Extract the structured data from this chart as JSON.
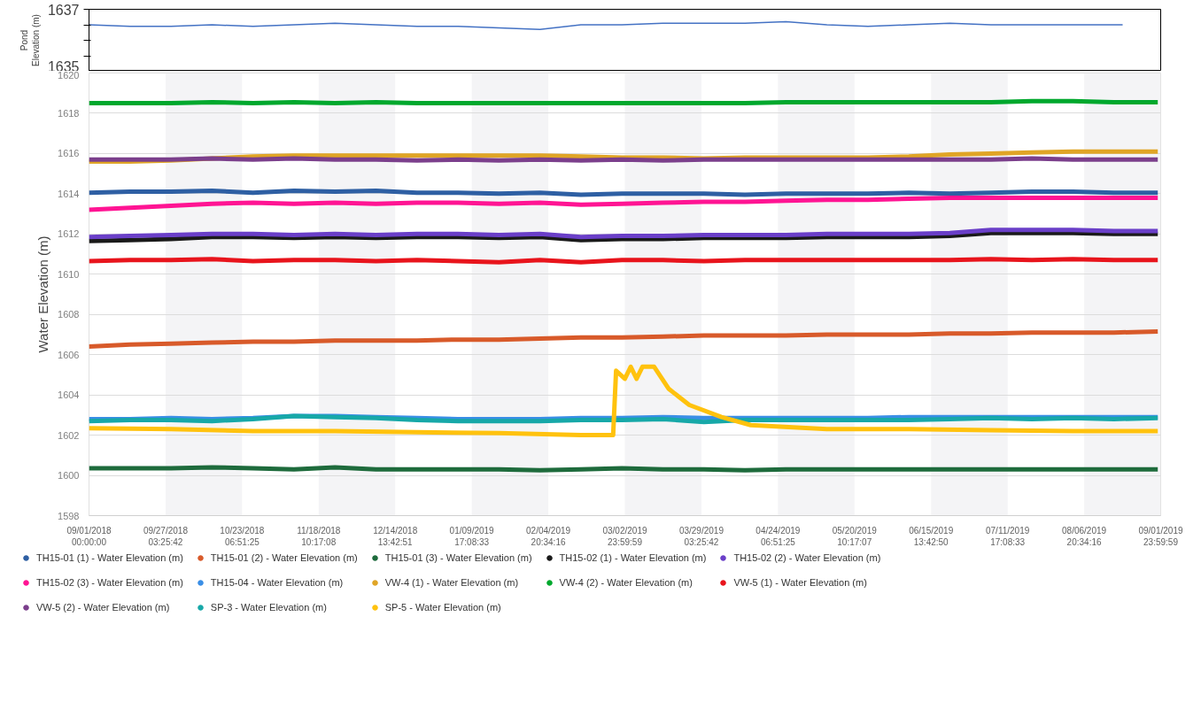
{
  "chart_data": [
    {
      "type": "line",
      "ylabel": "Pond\nElevation (m)",
      "xlim": [
        "2018-09-01T00:00",
        "2019-09-01T23:59"
      ],
      "ylim": [
        1635,
        1637
      ],
      "yticks": [
        1635,
        {
          "value": 1635.5,
          "label": null
        },
        {
          "value": 1636,
          "label": null
        },
        {
          "value": 1636.5,
          "label": null
        },
        1637
      ],
      "tick_labels": "y",
      "grid": false,
      "x": [
        "2018-09-01",
        "2018-09-15",
        "2018-09-29",
        "2018-10-13",
        "2018-10-27",
        "2018-11-10",
        "2018-11-24",
        "2018-12-08",
        "2018-12-22",
        "2019-01-05",
        "2019-01-19",
        "2019-02-02",
        "2019-02-16",
        "2019-03-02",
        "2019-03-16",
        "2019-03-30",
        "2019-04-13",
        "2019-04-27",
        "2019-05-11",
        "2019-05-25",
        "2019-06-08",
        "2019-06-22",
        "2019-07-06",
        "2019-07-20",
        "2019-08-03",
        "2019-08-20"
      ],
      "series": [
        {
          "color": "#4472c4",
          "values": [
            1636.5,
            1636.45,
            1636.45,
            1636.5,
            1636.45,
            1636.5,
            1636.55,
            1636.5,
            1636.45,
            1636.45,
            1636.4,
            1636.35,
            1636.5,
            1636.5,
            1636.55,
            1636.55,
            1636.55,
            1636.6,
            1636.5,
            1636.45,
            1636.5,
            1636.55,
            1636.5,
            1636.5,
            1636.5,
            1636.5
          ]
        }
      ]
    },
    {
      "type": "line",
      "ylabel": "Water Elevation (m)",
      "xlim": [
        "2018-09-01T00:00",
        "2019-09-01T23:59"
      ],
      "xticks": [
        {
          "value": "2018-09-01T00:00",
          "label": "09/01/2018\n00:00:00"
        },
        {
          "value": "2018-09-27T03:25",
          "label": "09/27/2018\n03:25:42"
        },
        {
          "value": "2018-10-23T06:51",
          "label": "10/23/2018\n06:51:25"
        },
        {
          "value": "2018-11-18T10:17",
          "label": "11/18/2018\n10:17:08"
        },
        {
          "value": "2018-12-14T13:42",
          "label": "12/14/2018\n13:42:51"
        },
        {
          "value": "2019-01-09T17:08",
          "label": "01/09/2019\n17:08:33"
        },
        {
          "value": "2019-02-04T20:34",
          "label": "02/04/2019\n20:34:16"
        },
        {
          "value": "2019-03-02T23:59",
          "label": "03/02/2019\n23:59:59"
        },
        {
          "value": "2019-03-29T03:25",
          "label": "03/29/2019\n03:25:42"
        },
        {
          "value": "2019-04-24T06:51",
          "label": "04/24/2019\n06:51:25"
        },
        {
          "value": "2019-05-20T10:17",
          "label": "05/20/2019\n10:17:07"
        },
        {
          "value": "2019-06-15T13:42",
          "label": "06/15/2019\n13:42:50"
        },
        {
          "value": "2019-07-11T17:08",
          "label": "07/11/2019\n17:08:33"
        },
        {
          "value": "2019-08-06T20:34",
          "label": "08/06/2019\n20:34:16"
        },
        {
          "value": "2019-09-01T23:59",
          "label": "09/01/2019\n23:59:59"
        }
      ],
      "ylim": [
        1598,
        1620
      ],
      "yticks": [
        1598,
        1600,
        1602,
        1604,
        1606,
        1608,
        1610,
        1612,
        1614,
        1616,
        1618,
        1620
      ],
      "grid": true,
      "legend": "bottom",
      "x": [
        "2018-09-01",
        "2018-09-15",
        "2018-09-29",
        "2018-10-13",
        "2018-10-27",
        "2018-11-10",
        "2018-11-24",
        "2018-12-08",
        "2018-12-22",
        "2019-01-05",
        "2019-01-19",
        "2019-02-02",
        "2019-02-16",
        "2019-03-02",
        "2019-03-16",
        "2019-03-30",
        "2019-04-13",
        "2019-04-27",
        "2019-05-11",
        "2019-05-25",
        "2019-06-08",
        "2019-06-22",
        "2019-07-06",
        "2019-07-20",
        "2019-08-03",
        "2019-08-17",
        "2019-09-01"
      ],
      "series": [
        {
          "name": "TH15-01 (1) - Water Elevation (m)",
          "color": "#2e5fa3",
          "values": [
            1614.05,
            1614.1,
            1614.1,
            1614.15,
            1614.05,
            1614.15,
            1614.1,
            1614.15,
            1614.05,
            1614.05,
            1614.0,
            1614.05,
            1613.95,
            1614.0,
            1614.0,
            1614.0,
            1613.95,
            1614.0,
            1614.0,
            1614.0,
            1614.05,
            1614.0,
            1614.05,
            1614.1,
            1614.1,
            1614.05,
            1614.05
          ]
        },
        {
          "name": "TH15-01 (2) - Water Elevation (m)",
          "color": "#d85a2a",
          "values": [
            1606.4,
            1606.5,
            1606.55,
            1606.6,
            1606.65,
            1606.65,
            1606.7,
            1606.7,
            1606.7,
            1606.75,
            1606.75,
            1606.8,
            1606.85,
            1606.85,
            1606.9,
            1606.95,
            1606.95,
            1606.95,
            1607.0,
            1607.0,
            1607.0,
            1607.05,
            1607.05,
            1607.1,
            1607.1,
            1607.1,
            1607.15
          ]
        },
        {
          "name": "TH15-01 (3) - Water Elevation (m)",
          "color": "#1e6b3c",
          "values": [
            1600.35,
            1600.35,
            1600.35,
            1600.4,
            1600.35,
            1600.3,
            1600.4,
            1600.3,
            1600.3,
            1600.3,
            1600.3,
            1600.25,
            1600.3,
            1600.35,
            1600.3,
            1600.3,
            1600.25,
            1600.3,
            1600.3,
            1600.3,
            1600.3,
            1600.3,
            1600.3,
            1600.3,
            1600.3,
            1600.3,
            1600.3
          ]
        },
        {
          "name": "TH15-02 (1) - Water Elevation (m)",
          "color": "#1a1a1a",
          "values": [
            1611.65,
            1611.7,
            1611.75,
            1611.85,
            1611.85,
            1611.8,
            1611.85,
            1611.8,
            1611.85,
            1611.85,
            1611.8,
            1611.85,
            1611.7,
            1611.75,
            1611.75,
            1611.8,
            1611.8,
            1611.8,
            1611.85,
            1611.85,
            1611.85,
            1611.9,
            1612.05,
            1612.05,
            1612.05,
            1612.0,
            1612.0
          ]
        },
        {
          "name": "TH15-02 (2) - Water Elevation (m)",
          "color": "#6a3fc8",
          "values": [
            1611.85,
            1611.9,
            1611.95,
            1612.0,
            1612.0,
            1611.95,
            1612.0,
            1611.95,
            1612.0,
            1612.0,
            1611.95,
            1612.0,
            1611.85,
            1611.9,
            1611.9,
            1611.95,
            1611.95,
            1611.95,
            1612.0,
            1612.0,
            1612.0,
            1612.05,
            1612.2,
            1612.2,
            1612.2,
            1612.15,
            1612.15
          ]
        },
        {
          "name": "TH15-02 (3) - Water Elevation (m)",
          "color": "#ff1493",
          "values": [
            1613.2,
            1613.3,
            1613.4,
            1613.5,
            1613.55,
            1613.5,
            1613.55,
            1613.5,
            1613.55,
            1613.55,
            1613.5,
            1613.55,
            1613.45,
            1613.5,
            1613.55,
            1613.6,
            1613.6,
            1613.65,
            1613.7,
            1613.7,
            1613.75,
            1613.8,
            1613.8,
            1613.8,
            1613.8,
            1613.8,
            1613.8
          ]
        },
        {
          "name": "TH15-04 - Water Elevation (m)",
          "color": "#3a8ee6",
          "values": [
            1602.8,
            1602.8,
            1602.85,
            1602.8,
            1602.85,
            1602.95,
            1602.95,
            1602.9,
            1602.85,
            1602.8,
            1602.8,
            1602.8,
            1602.85,
            1602.85,
            1602.9,
            1602.85,
            1602.85,
            1602.85,
            1602.85,
            1602.85,
            1602.9,
            1602.9,
            1602.9,
            1602.9,
            1602.9,
            1602.9,
            1602.9
          ]
        },
        {
          "name": "VW-4 (1) - Water Elevation (m)",
          "color": "#e0a526",
          "values": [
            1615.6,
            1615.6,
            1615.65,
            1615.75,
            1615.85,
            1615.9,
            1615.9,
            1615.9,
            1615.9,
            1615.9,
            1615.9,
            1615.9,
            1615.85,
            1615.8,
            1615.8,
            1615.75,
            1615.8,
            1615.8,
            1615.8,
            1615.8,
            1615.85,
            1615.95,
            1616.0,
            1616.05,
            1616.1,
            1616.1,
            1616.1
          ]
        },
        {
          "name": "VW-4 (2) - Water Elevation (m)",
          "color": "#00a82d",
          "values": [
            1618.5,
            1618.5,
            1618.5,
            1618.55,
            1618.5,
            1618.55,
            1618.5,
            1618.55,
            1618.5,
            1618.5,
            1618.5,
            1618.5,
            1618.5,
            1618.5,
            1618.5,
            1618.5,
            1618.5,
            1618.55,
            1618.55,
            1618.55,
            1618.55,
            1618.55,
            1618.55,
            1618.6,
            1618.6,
            1618.55,
            1618.55
          ]
        },
        {
          "name": "VW-5 (1) - Water Elevation (m)",
          "color": "#e8141c",
          "values": [
            1610.65,
            1610.7,
            1610.7,
            1610.75,
            1610.65,
            1610.7,
            1610.7,
            1610.65,
            1610.7,
            1610.65,
            1610.6,
            1610.7,
            1610.6,
            1610.7,
            1610.7,
            1610.65,
            1610.7,
            1610.7,
            1610.7,
            1610.7,
            1610.7,
            1610.7,
            1610.75,
            1610.7,
            1610.75,
            1610.7,
            1610.7
          ]
        },
        {
          "name": "VW-5 (2) - Water Elevation (m)",
          "color": "#7b3f8c",
          "values": [
            1615.7,
            1615.7,
            1615.7,
            1615.75,
            1615.7,
            1615.75,
            1615.7,
            1615.7,
            1615.65,
            1615.7,
            1615.65,
            1615.7,
            1615.65,
            1615.7,
            1615.65,
            1615.7,
            1615.7,
            1615.7,
            1615.7,
            1615.7,
            1615.7,
            1615.7,
            1615.7,
            1615.75,
            1615.7,
            1615.7,
            1615.7
          ]
        },
        {
          "name": "SP-3 - Water Elevation (m)",
          "color": "#17a8a8",
          "values": [
            1602.7,
            1602.75,
            1602.75,
            1602.7,
            1602.8,
            1602.95,
            1602.9,
            1602.85,
            1602.75,
            1602.7,
            1602.7,
            1602.7,
            1602.75,
            1602.75,
            1602.8,
            1602.65,
            1602.75,
            1602.75,
            1602.75,
            1602.75,
            1602.75,
            1602.8,
            1602.85,
            1602.8,
            1602.85,
            1602.8,
            1602.85
          ]
        },
        {
          "name": "SP-5 - Water Elevation (m)",
          "color": "#ffc20e",
          "x": [
            "2018-09-01",
            "2018-09-29",
            "2018-10-27",
            "2018-11-24",
            "2018-12-22",
            "2019-01-19",
            "2019-02-16",
            "2019-02-27",
            "2019-02-28",
            "2019-03-03",
            "2019-03-05",
            "2019-03-07",
            "2019-03-09",
            "2019-03-13",
            "2019-03-18",
            "2019-03-25",
            "2019-04-05",
            "2019-04-15",
            "2019-05-11",
            "2019-06-08",
            "2019-07-06",
            "2019-08-03",
            "2019-09-01"
          ],
          "values": [
            1602.35,
            1602.3,
            1602.2,
            1602.2,
            1602.15,
            1602.1,
            1602.0,
            1602.0,
            1605.2,
            1604.8,
            1605.4,
            1604.8,
            1605.4,
            1605.4,
            1604.3,
            1603.5,
            1602.9,
            1602.5,
            1602.3,
            1602.3,
            1602.25,
            1602.2,
            1602.2
          ]
        }
      ]
    }
  ]
}
